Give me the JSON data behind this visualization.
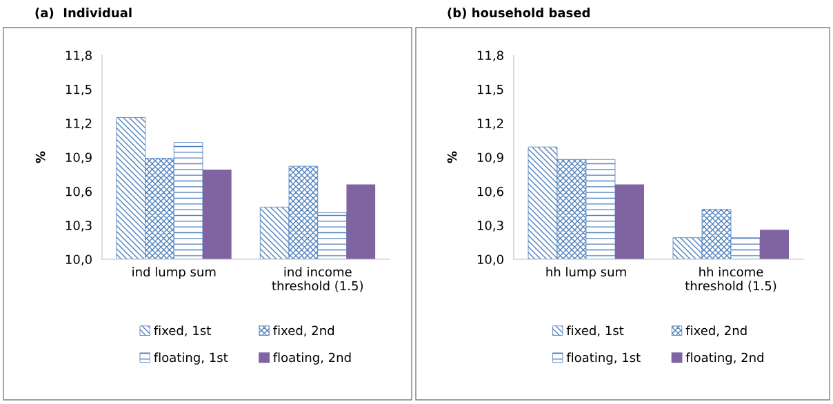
{
  "chart_data": [
    {
      "type": "bar",
      "title": "(a)  Individual",
      "ylabel": "%",
      "categories": [
        "ind lump sum",
        "ind income\nthreshold (1.5)"
      ],
      "ylim": [
        10.0,
        11.8
      ],
      "yticks": [
        {
          "value": 10.0,
          "label": "10,0"
        },
        {
          "value": 10.3,
          "label": "10,3"
        },
        {
          "value": 10.6,
          "label": "10,6"
        },
        {
          "value": 10.9,
          "label": "10,9"
        },
        {
          "value": 11.2,
          "label": "11,2"
        },
        {
          "value": 11.5,
          "label": "11,5"
        },
        {
          "value": 11.8,
          "label": "11,8"
        }
      ],
      "grid": false,
      "legend": "bottom",
      "series": [
        {
          "name": "fixed, 1st",
          "color": "#4f81bd",
          "values": [
            11.25,
            10.46
          ]
        },
        {
          "name": "fixed, 2nd",
          "color": "#4f81bd",
          "values": [
            10.89,
            10.82
          ]
        },
        {
          "name": "floating, 1st",
          "color": "#4f81bd",
          "values": [
            11.03,
            10.41
          ]
        },
        {
          "name": "floating, 2nd",
          "color": "#8064a2",
          "values": [
            10.79,
            10.66
          ]
        }
      ]
    },
    {
      "type": "bar",
      "title": "(b) household based",
      "ylabel": "%",
      "categories": [
        "hh lump sum",
        "hh income\nthreshold (1.5)"
      ],
      "ylim": [
        10.0,
        11.8
      ],
      "yticks": [
        {
          "value": 10.0,
          "label": "10,0"
        },
        {
          "value": 10.3,
          "label": "10,3"
        },
        {
          "value": 10.6,
          "label": "10,6"
        },
        {
          "value": 10.9,
          "label": "10,9"
        },
        {
          "value": 11.2,
          "label": "11,2"
        },
        {
          "value": 11.5,
          "label": "11,5"
        },
        {
          "value": 11.8,
          "label": "11,8"
        }
      ],
      "grid": false,
      "legend": "bottom",
      "series": [
        {
          "name": "fixed, 1st",
          "color": "#4f81bd",
          "values": [
            10.99,
            10.19
          ]
        },
        {
          "name": "fixed, 2nd",
          "color": "#4f81bd",
          "values": [
            10.88,
            10.44
          ]
        },
        {
          "name": "floating, 1st",
          "color": "#4f81bd",
          "values": [
            10.88,
            10.19
          ]
        },
        {
          "name": "floating, 2nd",
          "color": "#8064a2",
          "values": [
            10.66,
            10.26
          ]
        }
      ]
    }
  ]
}
